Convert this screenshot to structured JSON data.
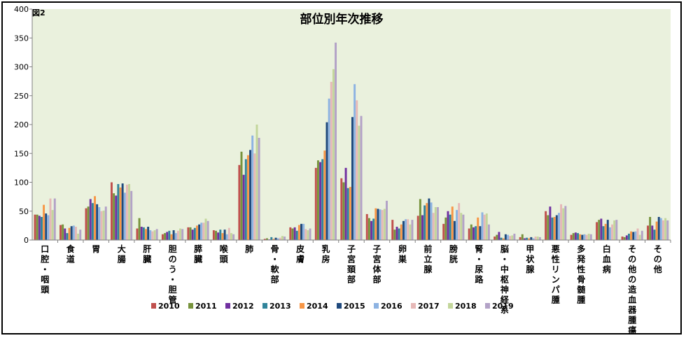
{
  "figure_label": "図2",
  "chart_data": {
    "type": "bar",
    "title": "部位別年次推移",
    "xlabel": "",
    "ylabel": "",
    "ylim": [
      0,
      400
    ],
    "yticks": [
      0,
      50,
      100,
      150,
      200,
      250,
      300,
      350,
      400
    ],
    "grid": false,
    "plot_background": "#eaf1dd",
    "legend_position": "bottom",
    "categories": [
      "口腔・咽頭",
      "食道",
      "胃",
      "大腸",
      "肝臓",
      "胆のう・胆管",
      "膵臓",
      "喉頭",
      "肺",
      "骨・軟部",
      "皮膚",
      "乳房",
      "子宮頚部",
      "子宮体部",
      "卵巣",
      "前立腺",
      "膀胱",
      "腎・尿路",
      "脳・中枢神経系",
      "甲状腺",
      "悪性リンパ腫",
      "多発性骨髄腫",
      "白血病",
      "その他の造血器腫瘍",
      "その他"
    ],
    "series": [
      {
        "name": "2010",
        "color": "#c0504d",
        "values": [
          44,
          26,
          55,
          100,
          20,
          10,
          22,
          17,
          130,
          2,
          22,
          125,
          107,
          45,
          35,
          42,
          28,
          20,
          6,
          5,
          50,
          9,
          31,
          6,
          25
        ]
      },
      {
        "name": "2011",
        "color": "#77933c",
        "values": [
          44,
          27,
          58,
          81,
          38,
          12,
          22,
          16,
          153,
          3,
          20,
          138,
          100,
          38,
          18,
          71,
          39,
          27,
          9,
          10,
          43,
          12,
          35,
          5,
          40
        ]
      },
      {
        "name": "2012",
        "color": "#7030a0",
        "values": [
          42,
          20,
          71,
          77,
          23,
          14,
          18,
          13,
          113,
          1,
          22,
          135,
          125,
          33,
          23,
          43,
          50,
          22,
          14,
          3,
          58,
          13,
          37,
          8,
          25
        ]
      },
      {
        "name": "2013",
        "color": "#31849b",
        "values": [
          40,
          12,
          64,
          97,
          22,
          16,
          21,
          18,
          140,
          5,
          16,
          140,
          90,
          37,
          20,
          60,
          44,
          24,
          4,
          4,
          39,
          12,
          24,
          11,
          18
        ]
      },
      {
        "name": "2014",
        "color": "#f79646",
        "values": [
          61,
          21,
          76,
          91,
          19,
          10,
          25,
          12,
          147,
          2,
          26,
          155,
          92,
          55,
          27,
          64,
          58,
          39,
          3,
          3,
          40,
          10,
          28,
          15,
          32
        ]
      },
      {
        "name": "2015",
        "color": "#1f497d",
        "values": [
          46,
          24,
          62,
          98,
          23,
          17,
          27,
          18,
          156,
          4,
          28,
          204,
          213,
          54,
          33,
          72,
          33,
          24,
          10,
          5,
          43,
          9,
          35,
          14,
          40
        ]
      },
      {
        "name": "2016",
        "color": "#8db3e2",
        "values": [
          43,
          25,
          57,
          82,
          17,
          12,
          30,
          10,
          181,
          3,
          28,
          245,
          270,
          53,
          36,
          65,
          52,
          48,
          9,
          3,
          47,
          10,
          22,
          15,
          38
        ]
      },
      {
        "name": "2017",
        "color": "#e6b8b7",
        "values": [
          72,
          23,
          50,
          96,
          15,
          16,
          30,
          21,
          150,
          4,
          19,
          274,
          242,
          52,
          36,
          47,
          64,
          44,
          7,
          6,
          62,
          9,
          27,
          20,
          34
        ]
      },
      {
        "name": "2018",
        "color": "#c3d69b",
        "values": [
          52,
          11,
          51,
          97,
          17,
          20,
          37,
          12,
          200,
          7,
          17,
          296,
          198,
          54,
          27,
          57,
          47,
          46,
          8,
          6,
          55,
          11,
          34,
          9,
          38
        ]
      },
      {
        "name": "2019",
        "color": "#b3a2c7",
        "values": [
          72,
          18,
          58,
          85,
          19,
          19,
          33,
          10,
          177,
          6,
          20,
          342,
          215,
          68,
          35,
          57,
          44,
          27,
          11,
          5,
          59,
          10,
          35,
          16,
          34
        ]
      }
    ]
  }
}
